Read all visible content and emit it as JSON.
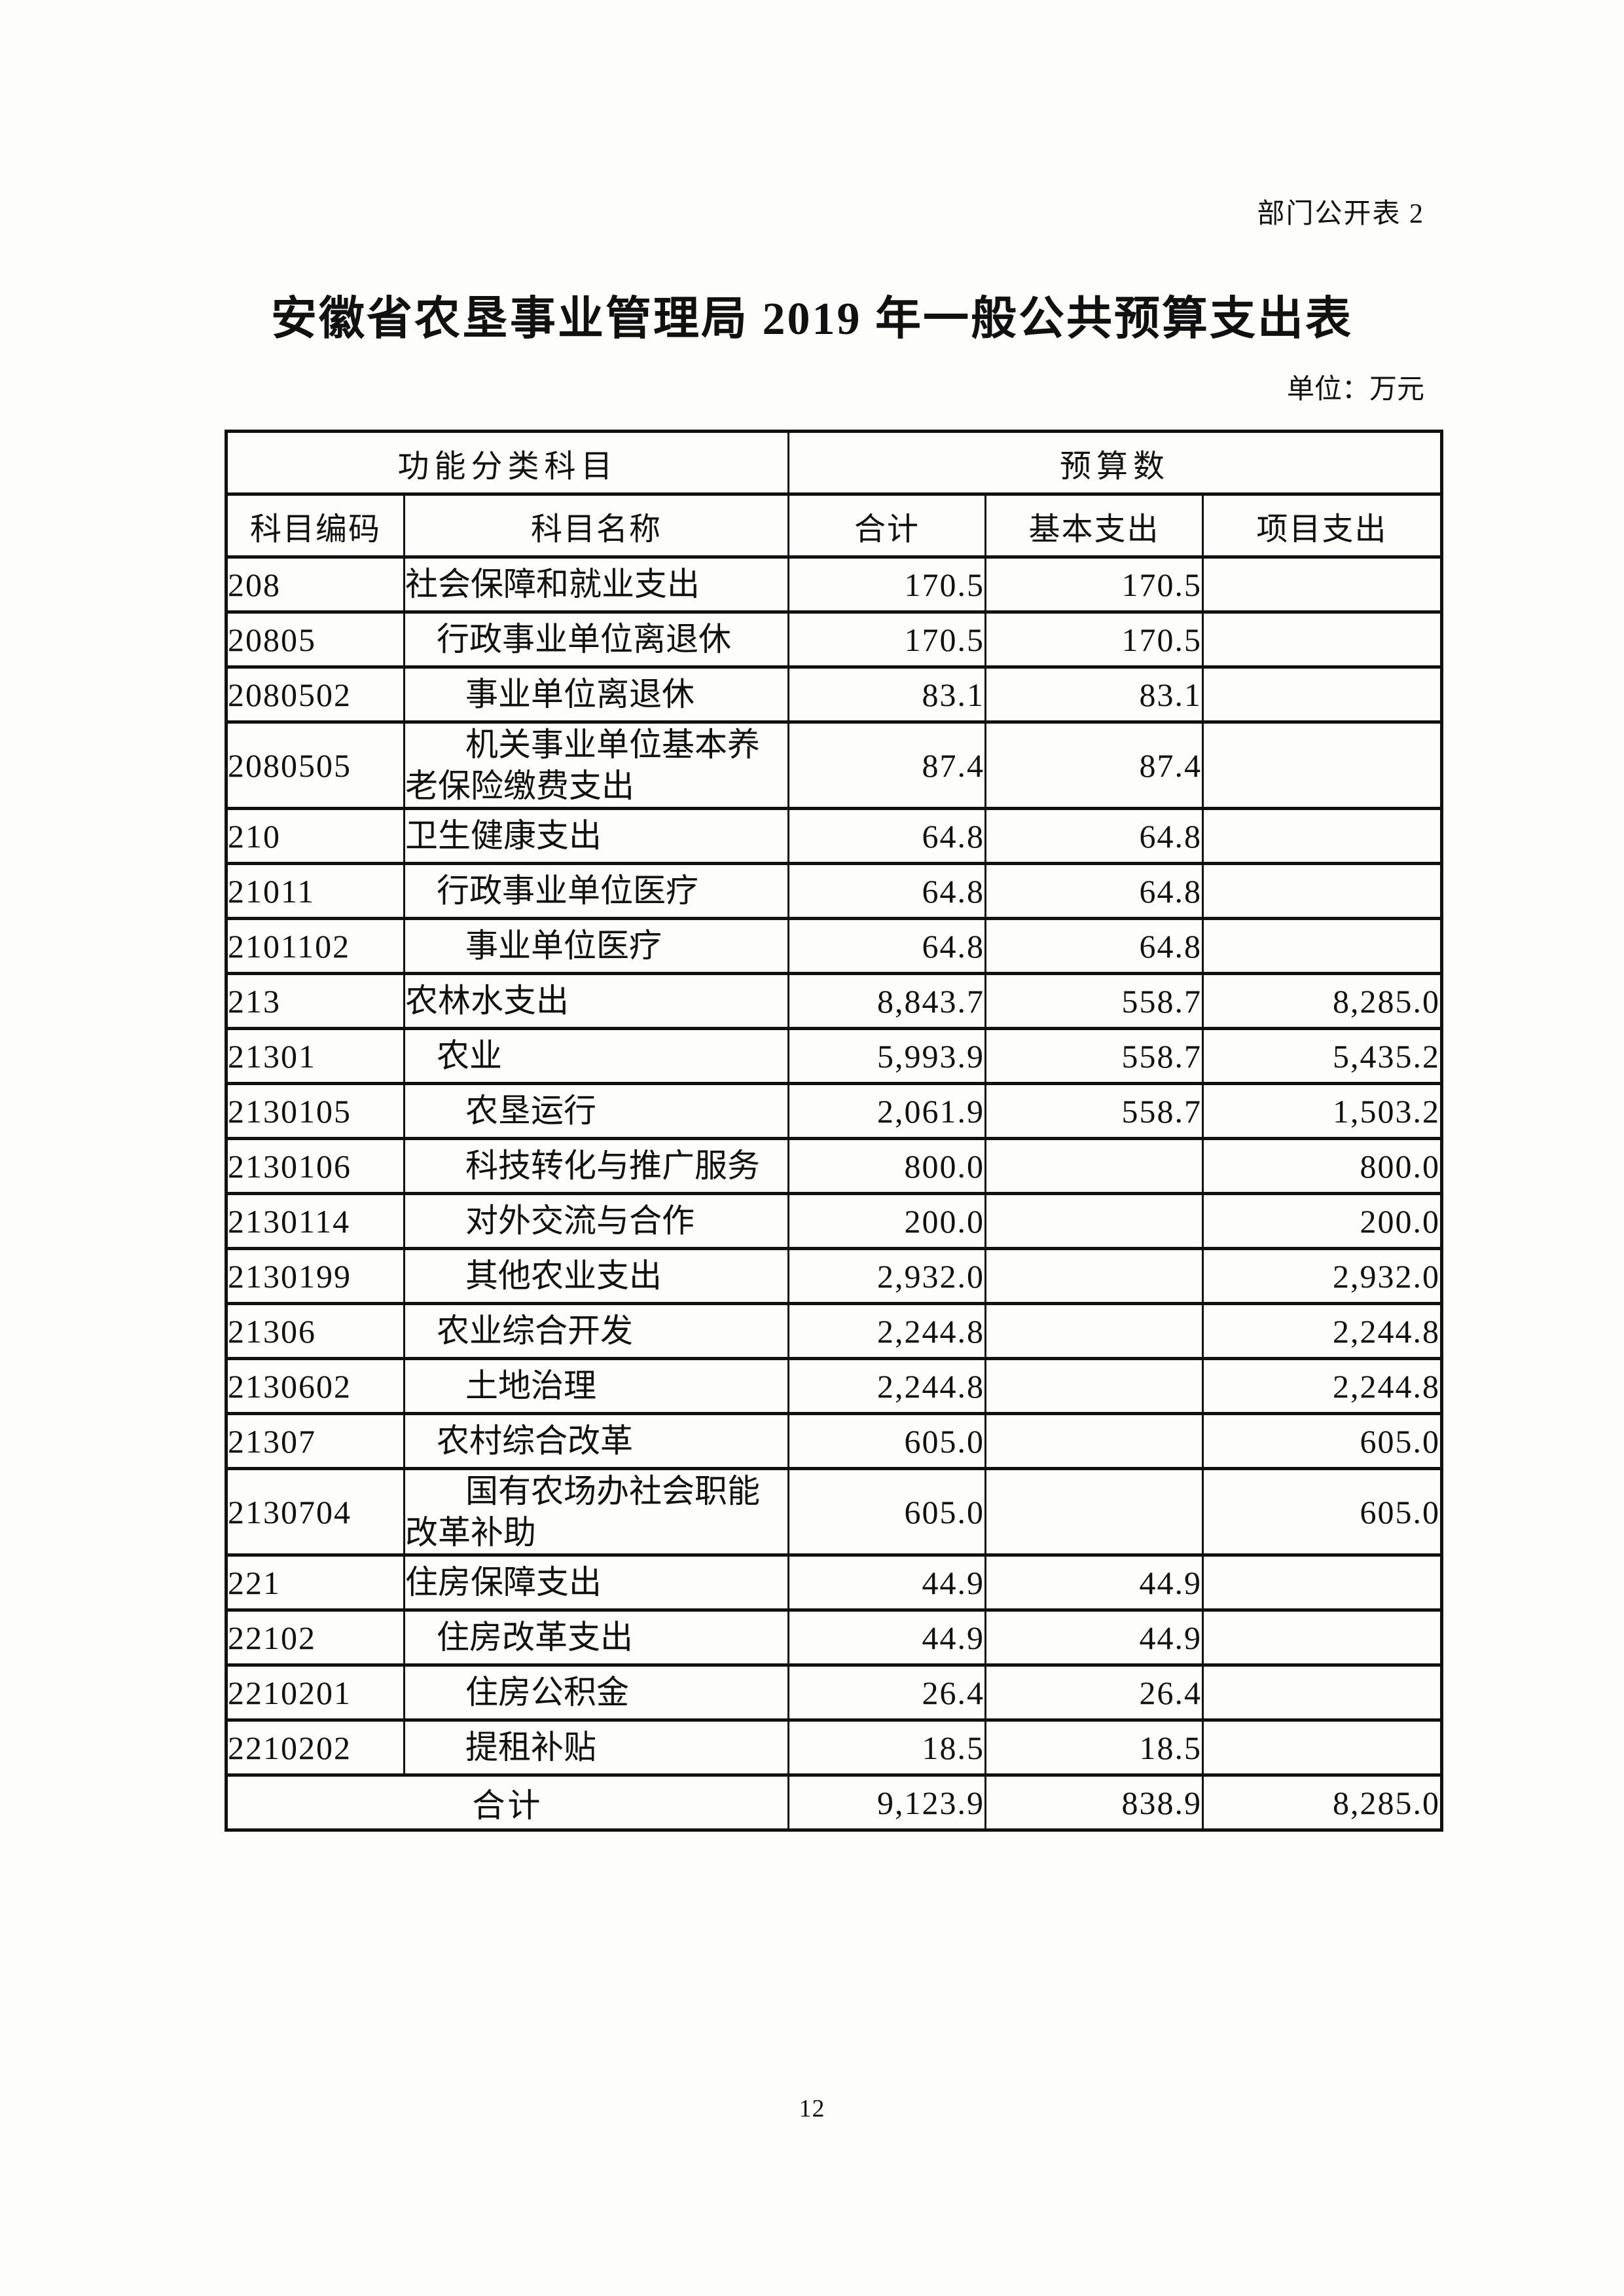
{
  "colors": {
    "ink": "#111111",
    "paper": "#fdfdfc"
  },
  "page": {
    "corner_label": "部门公开表 2",
    "title": "安徽省农垦事业管理局 2019 年一般公共预算支出表",
    "unit_label": "单位：万元",
    "page_number": "12"
  },
  "table": {
    "header": {
      "function_group": "功能分类科目",
      "budget_group": "预算数",
      "columns": [
        "科目编码",
        "科目名称",
        "合计",
        "基本支出",
        "项目支出"
      ]
    },
    "rows": [
      {
        "code": "208",
        "name": "社会保障和就业支出",
        "indent": 0,
        "total": "170.5",
        "basic": "170.5",
        "project": ""
      },
      {
        "code": "20805",
        "name": "行政事业单位离退休",
        "indent": 1,
        "total": "170.5",
        "basic": "170.5",
        "project": ""
      },
      {
        "code": "2080502",
        "name": "事业单位离退休",
        "indent": 2,
        "total": "83.1",
        "basic": "83.1",
        "project": ""
      },
      {
        "code": "2080505",
        "name": "机关事业单位基本养\n老保险缴费支出",
        "indent": 2,
        "total": "87.4",
        "basic": "87.4",
        "project": ""
      },
      {
        "code": "210",
        "name": "卫生健康支出",
        "indent": 0,
        "total": "64.8",
        "basic": "64.8",
        "project": ""
      },
      {
        "code": "21011",
        "name": "行政事业单位医疗",
        "indent": 1,
        "total": "64.8",
        "basic": "64.8",
        "project": ""
      },
      {
        "code": "2101102",
        "name": "事业单位医疗",
        "indent": 2,
        "total": "64.8",
        "basic": "64.8",
        "project": ""
      },
      {
        "code": "213",
        "name": "农林水支出",
        "indent": 0,
        "total": "8,843.7",
        "basic": "558.7",
        "project": "8,285.0"
      },
      {
        "code": "21301",
        "name": "农业",
        "indent": 1,
        "total": "5,993.9",
        "basic": "558.7",
        "project": "5,435.2"
      },
      {
        "code": "2130105",
        "name": "农垦运行",
        "indent": 2,
        "total": "2,061.9",
        "basic": "558.7",
        "project": "1,503.2"
      },
      {
        "code": "2130106",
        "name": "科技转化与推广服务",
        "indent": 2,
        "total": "800.0",
        "basic": "",
        "project": "800.0"
      },
      {
        "code": "2130114",
        "name": "对外交流与合作",
        "indent": 2,
        "total": "200.0",
        "basic": "",
        "project": "200.0"
      },
      {
        "code": "2130199",
        "name": "其他农业支出",
        "indent": 2,
        "total": "2,932.0",
        "basic": "",
        "project": "2,932.0"
      },
      {
        "code": "21306",
        "name": "农业综合开发",
        "indent": 1,
        "total": "2,244.8",
        "basic": "",
        "project": "2,244.8"
      },
      {
        "code": "2130602",
        "name": "土地治理",
        "indent": 2,
        "total": "2,244.8",
        "basic": "",
        "project": "2,244.8"
      },
      {
        "code": "21307",
        "name": "农村综合改革",
        "indent": 1,
        "total": "605.0",
        "basic": "",
        "project": "605.0"
      },
      {
        "code": "2130704",
        "name": "国有农场办社会职能\n改革补助",
        "indent": 2,
        "total": "605.0",
        "basic": "",
        "project": "605.0"
      },
      {
        "code": "221",
        "name": "住房保障支出",
        "indent": 0,
        "total": "44.9",
        "basic": "44.9",
        "project": ""
      },
      {
        "code": "22102",
        "name": "住房改革支出",
        "indent": 1,
        "total": "44.9",
        "basic": "44.9",
        "project": ""
      },
      {
        "code": "2210201",
        "name": "住房公积金",
        "indent": 2,
        "total": "26.4",
        "basic": "26.4",
        "project": ""
      },
      {
        "code": "2210202",
        "name": "提租补贴",
        "indent": 2,
        "total": "18.5",
        "basic": "18.5",
        "project": ""
      }
    ],
    "total_row": {
      "label": "合计",
      "total": "9,123.9",
      "basic": "838.9",
      "project": "8,285.0"
    }
  }
}
